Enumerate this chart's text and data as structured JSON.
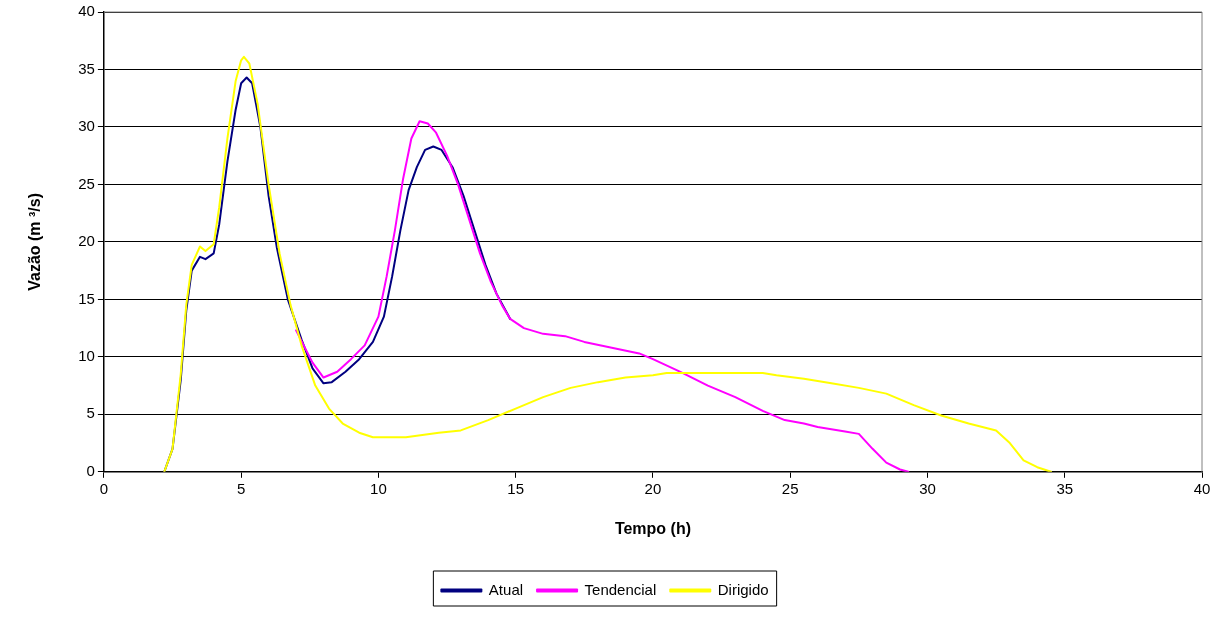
{
  "chart_data": {
    "type": "line",
    "xlabel": "Tempo (h)",
    "ylabel": "Vazão (m ³/s)",
    "xlim": [
      0,
      40
    ],
    "xticks": [
      0,
      5,
      10,
      15,
      20,
      25,
      30,
      35,
      40
    ],
    "ylim": [
      0,
      40
    ],
    "yticks": [
      0,
      5,
      10,
      15,
      20,
      25,
      30,
      35,
      40
    ],
    "grid": "y",
    "legend": "bottom",
    "marker": "none",
    "line_style": "solid",
    "series": [
      {
        "name": "Atual",
        "color": "#000080",
        "x": [
          2.2,
          2.5,
          2.8,
          3.0,
          3.2,
          3.5,
          3.7,
          4.0,
          4.2,
          4.5,
          4.8,
          5.0,
          5.2,
          5.4,
          5.7,
          6.0,
          6.3,
          6.7,
          7.2,
          7.6,
          8.0,
          8.3,
          8.8,
          9.3,
          9.8,
          10.2,
          10.5,
          10.8,
          11.1,
          11.4,
          11.7,
          12.0,
          12.3,
          12.7,
          13.1,
          13.5,
          13.9,
          14.3,
          14.8
        ],
        "values": [
          0,
          2,
          8,
          14,
          17.5,
          18.7,
          18.5,
          19,
          21.5,
          27,
          31.5,
          33.8,
          34.3,
          33.8,
          30,
          24,
          19.5,
          15,
          11.5,
          9,
          7.7,
          7.8,
          8.7,
          9.8,
          11.3,
          13.5,
          17,
          21,
          24.5,
          26.5,
          28,
          28.3,
          28,
          26.5,
          24,
          21,
          18,
          15.5,
          13.3
        ]
      },
      {
        "name": "Tendencial",
        "color": "#ff00ff",
        "x": [
          7.0,
          7.6,
          8.0,
          8.5,
          9.0,
          9.5,
          10.0,
          10.3,
          10.6,
          10.9,
          11.2,
          11.5,
          11.8,
          12.1,
          12.5,
          12.9,
          13.3,
          13.7,
          14.1,
          14.5,
          14.8,
          15.3,
          16,
          16.8,
          17.5,
          18.5,
          19.5,
          20,
          21,
          22,
          23,
          24,
          24.8,
          25.5,
          26,
          27,
          27.5,
          28,
          28.5,
          29,
          29.3
        ],
        "values": [
          12.3,
          9.5,
          8.2,
          8.7,
          9.8,
          11,
          13.5,
          17,
          21,
          25.5,
          29,
          30.5,
          30.3,
          29.5,
          27.5,
          25,
          22,
          19,
          16.5,
          14.5,
          13.3,
          12.5,
          12,
          11.8,
          11.3,
          10.8,
          10.3,
          9.8,
          8.7,
          7.5,
          6.5,
          5.3,
          4.5,
          4.2,
          3.9,
          3.5,
          3.3,
          2,
          0.8,
          0.2,
          0
        ]
      },
      {
        "name": "Dirigido",
        "color": "#ffff00",
        "x": [
          2.2,
          2.5,
          2.8,
          3.0,
          3.2,
          3.5,
          3.7,
          4.0,
          4.2,
          4.5,
          4.8,
          5.0,
          5.1,
          5.3,
          5.6,
          6.0,
          6.4,
          6.8,
          7.2,
          7.7,
          8.2,
          8.7,
          9.3,
          9.8,
          11,
          11.6,
          12.2,
          13,
          14,
          15,
          16,
          17,
          18,
          19,
          20,
          20.5,
          22,
          24,
          24.5,
          25.5,
          26.5,
          27.5,
          28.5,
          29.5,
          30.5,
          31.5,
          32.5,
          33,
          33.5,
          34,
          34.5
        ],
        "values": [
          0,
          2,
          8.5,
          14.5,
          18,
          19.6,
          19.2,
          19.8,
          23,
          29,
          34,
          35.8,
          36.1,
          35.5,
          32,
          25,
          19,
          14.5,
          11,
          7.5,
          5.5,
          4.2,
          3.4,
          3.0,
          3.0,
          3.2,
          3.4,
          3.6,
          4.5,
          5.5,
          6.5,
          7.3,
          7.8,
          8.2,
          8.4,
          8.6,
          8.6,
          8.6,
          8.4,
          8.1,
          7.7,
          7.3,
          6.8,
          5.8,
          4.9,
          4.2,
          3.6,
          2.5,
          1,
          0.4,
          0
        ]
      }
    ]
  }
}
